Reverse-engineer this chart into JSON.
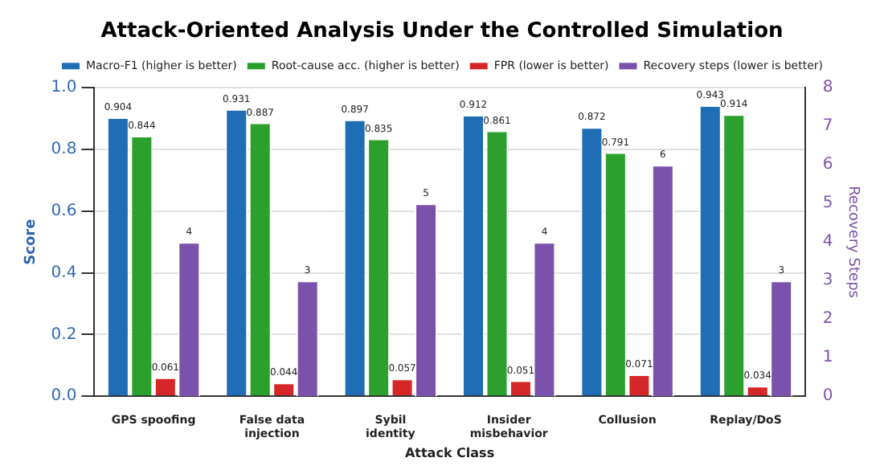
{
  "chart_data": {
    "type": "bar",
    "title": "Attack-Oriented Analysis Under the Controlled Simulation",
    "xlabel": "Attack Class",
    "ylabel": "Score",
    "y2label": "Recovery Steps",
    "categories": [
      "GPS spoofing",
      "False data injection",
      "Sybil identity",
      "Insider misbehavior",
      "Collusion",
      "Replay/DoS"
    ],
    "series": [
      {
        "name": "Macro-F1 (higher is better)",
        "color": "#1f6db5",
        "values": [
          0.904,
          0.931,
          0.897,
          0.912,
          0.872,
          0.943
        ]
      },
      {
        "name": "Root-cause acc. (higher is better)",
        "color": "#2ca02c",
        "values": [
          0.844,
          0.887,
          0.835,
          0.861,
          0.791,
          0.914
        ]
      },
      {
        "name": "FPR (lower is better)",
        "color": "#d62728",
        "values": [
          0.061,
          0.044,
          0.057,
          0.051,
          0.071,
          0.034
        ]
      },
      {
        "name": "Recovery steps (lower is better)",
        "color": "#7b52ab",
        "values": [
          4,
          3,
          5,
          4,
          6,
          3
        ],
        "axis": "y2"
      }
    ],
    "ylim": [
      0,
      1
    ],
    "yticks": [
      {
        "value": 0,
        "label": "0.0"
      },
      0.2,
      0.4,
      0.6,
      0.8,
      {
        "value": 1,
        "label": "1.0"
      }
    ],
    "y2lim": [
      0,
      8
    ],
    "y2ticks": [
      0,
      1,
      2,
      3,
      4,
      5,
      6,
      7,
      8
    ],
    "grid": "y",
    "legend": "top",
    "data_labels": true
  }
}
